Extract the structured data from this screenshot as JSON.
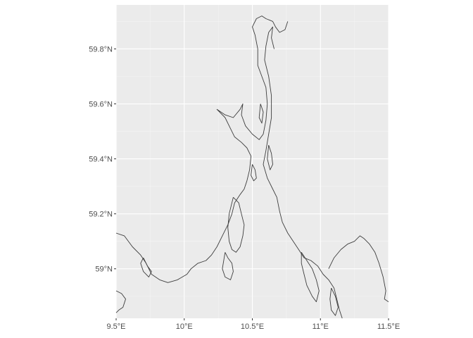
{
  "chart_data": {
    "type": "map",
    "title": "",
    "xlabel": "",
    "ylabel": "",
    "xlim": [
      9.5,
      11.5
    ],
    "ylim": [
      58.82,
      59.96
    ],
    "x_ticks": [
      {
        "value": 9.5,
        "label": "9.5°E"
      },
      {
        "value": 10.0,
        "label": "10°E"
      },
      {
        "value": 10.5,
        "label": "10.5°E"
      },
      {
        "value": 11.0,
        "label": "11°E"
      },
      {
        "value": 11.5,
        "label": "11.5°E"
      }
    ],
    "y_ticks": [
      {
        "value": 59.0,
        "label": "59°N"
      },
      {
        "value": 59.2,
        "label": "59.2°N"
      },
      {
        "value": 59.4,
        "label": "59.4°N"
      },
      {
        "value": 59.6,
        "label": "59.6°N"
      },
      {
        "value": 59.8,
        "label": "59.8°N"
      }
    ],
    "panel_background": "#ebebeb",
    "grid": true,
    "outline_color": "#3d3d3d",
    "features": [
      {
        "name": "western-coast",
        "points": [
          [
            9.5,
            59.13
          ],
          [
            9.56,
            59.12
          ],
          [
            9.62,
            59.08
          ],
          [
            9.68,
            59.05
          ],
          [
            9.72,
            59.02
          ],
          [
            9.76,
            58.98
          ],
          [
            9.82,
            58.96
          ],
          [
            9.88,
            58.95
          ],
          [
            9.95,
            58.96
          ],
          [
            10.02,
            58.98
          ],
          [
            10.05,
            59.0
          ],
          [
            10.1,
            59.02
          ],
          [
            10.16,
            59.03
          ],
          [
            10.2,
            59.05
          ],
          [
            10.24,
            59.08
          ],
          [
            10.28,
            59.12
          ],
          [
            10.32,
            59.16
          ],
          [
            10.35,
            59.2
          ],
          [
            10.37,
            59.24
          ],
          [
            10.41,
            59.27
          ],
          [
            10.44,
            59.29
          ],
          [
            10.46,
            59.32
          ],
          [
            10.48,
            59.36
          ],
          [
            10.49,
            59.41
          ],
          [
            10.46,
            59.44
          ],
          [
            10.42,
            59.46
          ],
          [
            10.37,
            59.48
          ],
          [
            10.33,
            59.52
          ],
          [
            10.3,
            59.55
          ],
          [
            10.24,
            59.58
          ],
          [
            10.3,
            59.56
          ],
          [
            10.36,
            59.55
          ],
          [
            10.41,
            59.58
          ],
          [
            10.43,
            59.6
          ],
          [
            10.42,
            59.56
          ],
          [
            10.45,
            59.52
          ],
          [
            10.5,
            59.49
          ],
          [
            10.55,
            59.47
          ],
          [
            10.58,
            59.49
          ],
          [
            10.6,
            59.54
          ],
          [
            10.61,
            59.6
          ],
          [
            10.6,
            59.66
          ],
          [
            10.57,
            59.7
          ],
          [
            10.54,
            59.74
          ],
          [
            10.54,
            59.8
          ],
          [
            10.52,
            59.85
          ],
          [
            10.5,
            59.88
          ],
          [
            10.53,
            59.91
          ],
          [
            10.57,
            59.92
          ],
          [
            10.6,
            59.91
          ],
          [
            10.65,
            59.9
          ],
          [
            10.67,
            59.88
          ],
          [
            10.7,
            59.86
          ],
          [
            10.74,
            59.87
          ],
          [
            10.76,
            59.9
          ]
        ]
      },
      {
        "name": "eastern-coast",
        "points": [
          [
            10.66,
            59.8
          ],
          [
            10.64,
            59.84
          ],
          [
            10.65,
            59.88
          ],
          [
            10.62,
            59.86
          ],
          [
            10.6,
            59.81
          ],
          [
            10.59,
            59.76
          ],
          [
            10.62,
            59.7
          ],
          [
            10.64,
            59.63
          ],
          [
            10.64,
            59.55
          ],
          [
            10.62,
            59.49
          ],
          [
            10.6,
            59.43
          ],
          [
            10.58,
            59.38
          ],
          [
            10.61,
            59.33
          ],
          [
            10.65,
            59.29
          ],
          [
            10.68,
            59.26
          ],
          [
            10.7,
            59.21
          ],
          [
            10.72,
            59.17
          ],
          [
            10.76,
            59.13
          ],
          [
            10.8,
            59.1
          ],
          [
            10.84,
            59.07
          ],
          [
            10.88,
            59.04
          ],
          [
            10.93,
            59.03
          ],
          [
            10.98,
            59.01
          ],
          [
            11.02,
            58.98
          ],
          [
            11.06,
            58.96
          ],
          [
            11.1,
            58.93
          ],
          [
            11.12,
            58.89
          ],
          [
            11.14,
            58.85
          ],
          [
            11.16,
            58.82
          ]
        ]
      },
      {
        "name": "border-line",
        "points": [
          [
            11.06,
            59.0
          ],
          [
            11.1,
            59.04
          ],
          [
            11.15,
            59.07
          ],
          [
            11.2,
            59.09
          ],
          [
            11.25,
            59.1
          ],
          [
            11.29,
            59.12
          ],
          [
            11.32,
            59.11
          ],
          [
            11.36,
            59.09
          ],
          [
            11.4,
            59.06
          ],
          [
            11.43,
            59.02
          ],
          [
            11.46,
            58.97
          ],
          [
            11.48,
            58.92
          ],
          [
            11.47,
            58.89
          ],
          [
            11.5,
            58.88
          ]
        ]
      },
      {
        "name": "nesodden-island-chain",
        "points": [
          [
            10.36,
            59.26
          ],
          [
            10.4,
            59.24
          ],
          [
            10.42,
            59.2
          ],
          [
            10.44,
            59.16
          ],
          [
            10.43,
            59.12
          ],
          [
            10.41,
            59.08
          ],
          [
            10.38,
            59.06
          ],
          [
            10.35,
            59.07
          ],
          [
            10.33,
            59.1
          ],
          [
            10.32,
            59.15
          ],
          [
            10.33,
            59.2
          ],
          [
            10.36,
            59.26
          ]
        ]
      },
      {
        "name": "tjome-islands",
        "points": [
          [
            10.3,
            59.06
          ],
          [
            10.32,
            59.04
          ],
          [
            10.35,
            59.02
          ],
          [
            10.36,
            58.99
          ],
          [
            10.34,
            58.96
          ],
          [
            10.3,
            58.97
          ],
          [
            10.28,
            59.0
          ],
          [
            10.3,
            59.06
          ]
        ]
      },
      {
        "name": "hvaler-islands",
        "points": [
          [
            10.86,
            59.06
          ],
          [
            10.9,
            59.03
          ],
          [
            10.94,
            59.0
          ],
          [
            10.97,
            58.96
          ],
          [
            10.99,
            58.92
          ],
          [
            10.97,
            58.88
          ],
          [
            10.94,
            58.9
          ],
          [
            10.9,
            58.94
          ],
          [
            10.88,
            58.98
          ],
          [
            10.86,
            59.02
          ],
          [
            10.86,
            59.06
          ]
        ]
      },
      {
        "name": "bastoy-island",
        "points": [
          [
            10.5,
            59.38
          ],
          [
            10.52,
            59.36
          ],
          [
            10.53,
            59.33
          ],
          [
            10.51,
            59.32
          ],
          [
            10.49,
            59.34
          ],
          [
            10.5,
            59.38
          ]
        ]
      },
      {
        "name": "jeloy-island",
        "points": [
          [
            10.62,
            59.45
          ],
          [
            10.64,
            59.42
          ],
          [
            10.65,
            59.38
          ],
          [
            10.63,
            59.36
          ],
          [
            10.61,
            59.4
          ],
          [
            10.62,
            59.45
          ]
        ]
      },
      {
        "name": "larvik-fjord-islets",
        "points": [
          [
            9.7,
            59.04
          ],
          [
            9.73,
            59.01
          ],
          [
            9.76,
            58.99
          ],
          [
            9.74,
            58.97
          ],
          [
            9.7,
            58.99
          ],
          [
            9.68,
            59.02
          ],
          [
            9.7,
            59.04
          ]
        ]
      },
      {
        "name": "southern-skerries",
        "points": [
          [
            9.5,
            58.92
          ],
          [
            9.54,
            58.91
          ],
          [
            9.57,
            58.89
          ],
          [
            9.55,
            58.86
          ],
          [
            9.52,
            58.85
          ],
          [
            9.5,
            58.84
          ]
        ]
      },
      {
        "name": "glommen-skerries",
        "points": [
          [
            11.08,
            58.93
          ],
          [
            11.11,
            58.9
          ],
          [
            11.13,
            58.86
          ],
          [
            11.11,
            58.83
          ],
          [
            11.08,
            58.85
          ],
          [
            11.07,
            58.89
          ],
          [
            11.08,
            58.93
          ]
        ]
      },
      {
        "name": "drobak-islets",
        "points": [
          [
            10.56,
            59.6
          ],
          [
            10.58,
            59.57
          ],
          [
            10.57,
            59.53
          ],
          [
            10.55,
            59.55
          ],
          [
            10.56,
            59.6
          ]
        ]
      }
    ]
  }
}
